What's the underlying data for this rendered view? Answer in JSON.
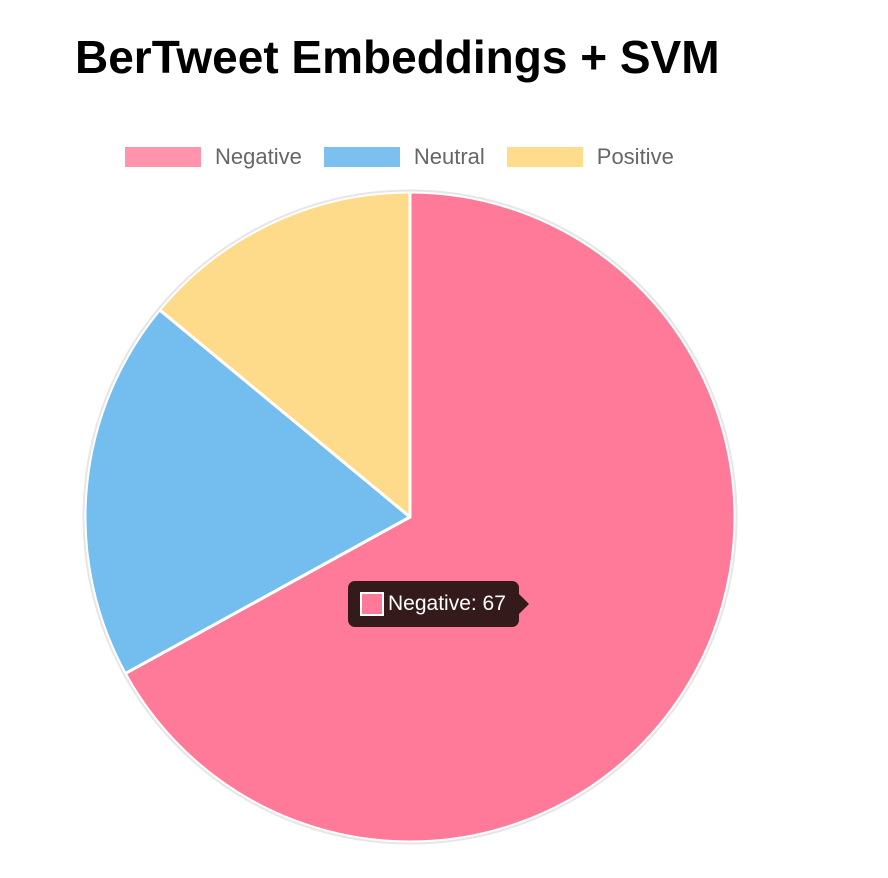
{
  "chart_data": {
    "type": "pie",
    "title": "BerTweet Embeddings + SVM",
    "categories": [
      "Negative",
      "Neutral",
      "Positive"
    ],
    "values": [
      67,
      19,
      14
    ],
    "colors": [
      "#FF7A98",
      "#74BDEF",
      "#FEDB8A"
    ],
    "legend_colors": [
      "#FF94AC",
      "#7CC0F0",
      "#FEDC8B"
    ],
    "legend_position": "top",
    "start_angle": "12 o'clock, clockwise"
  },
  "tooltip": {
    "text": "Negative: 67",
    "color": "#FF7A98"
  }
}
